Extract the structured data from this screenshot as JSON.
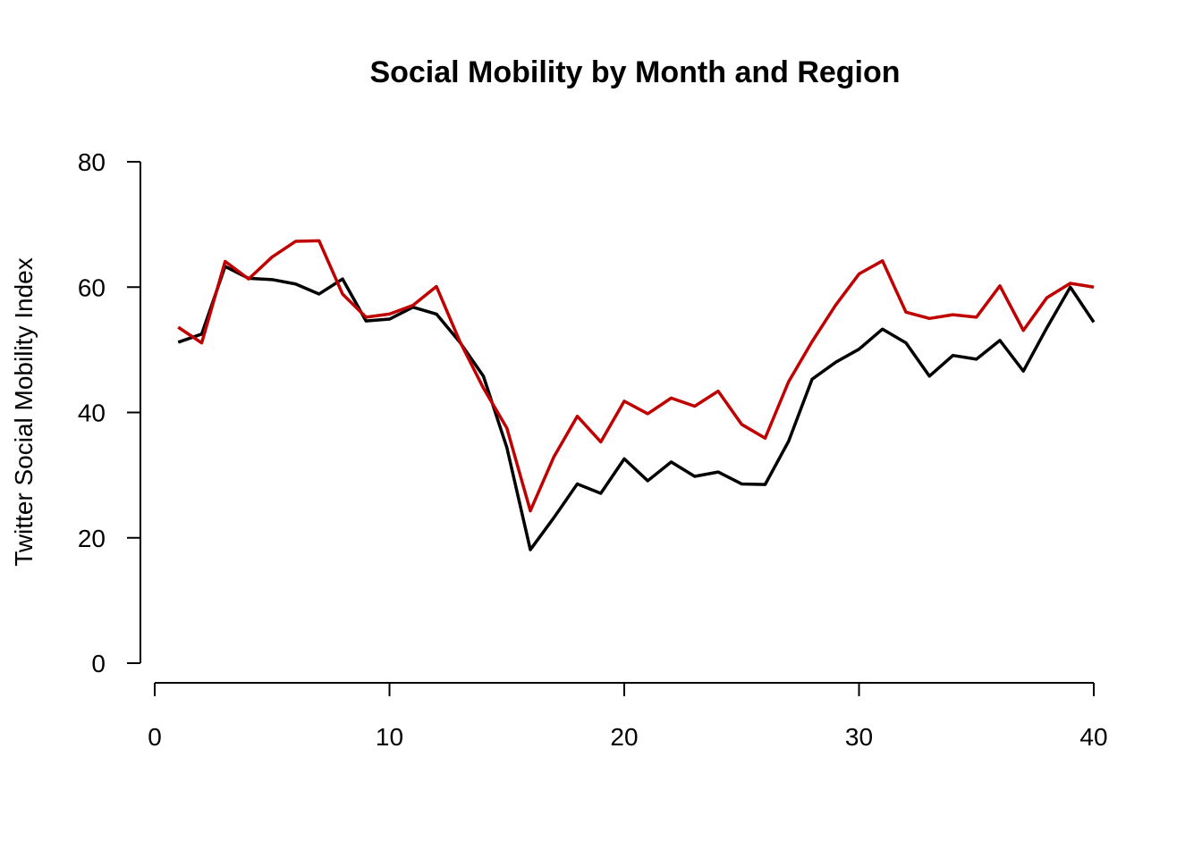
{
  "chart_data": {
    "type": "line",
    "title": "Social Mobility by Month and Region",
    "xlabel": "",
    "ylabel": "Twitter Social Mobility Index",
    "xlim": [
      0,
      40
    ],
    "ylim": [
      0,
      80
    ],
    "x_ticks": [
      0,
      10,
      20,
      30,
      40
    ],
    "y_ticks": [
      0,
      20,
      40,
      60,
      80
    ],
    "grid": false,
    "x": [
      1,
      2,
      3,
      4,
      5,
      6,
      7,
      8,
      9,
      10,
      11,
      12,
      13,
      14,
      15,
      16,
      17,
      18,
      19,
      20,
      21,
      22,
      23,
      24,
      25,
      26,
      27,
      28,
      29,
      30,
      31,
      32,
      33,
      34,
      35,
      36,
      37,
      38,
      39,
      40
    ],
    "series": [
      {
        "color": "#000000",
        "values": [
          51.2,
          52.5,
          63.3,
          61.4,
          61.2,
          60.5,
          58.9,
          61.3,
          54.6,
          54.9,
          56.8,
          55.7,
          51.2,
          45.8,
          34.4,
          18.1,
          23.2,
          28.6,
          27.1,
          32.6,
          29.1,
          32.1,
          29.8,
          30.5,
          28.6,
          28.5,
          35.4,
          45.3,
          48.0,
          50.1,
          53.3,
          51.1,
          45.8,
          49.1,
          48.5,
          51.5,
          46.6,
          53.5,
          60.0,
          54.4
        ]
      },
      {
        "color": "#c00000",
        "values": [
          53.6,
          51.1,
          64.1,
          61.3,
          64.8,
          67.3,
          67.4,
          58.9,
          55.2,
          55.7,
          57.1,
          60.1,
          51.3,
          43.9,
          37.5,
          24.3,
          32.9,
          39.4,
          35.3,
          41.8,
          39.8,
          42.3,
          41.0,
          43.4,
          38.1,
          35.9,
          44.9,
          51.3,
          57.1,
          62.1,
          64.2,
          56.0,
          55.0,
          55.6,
          55.2,
          60.2,
          53.1,
          58.3,
          60.6,
          60.0
        ]
      }
    ]
  }
}
